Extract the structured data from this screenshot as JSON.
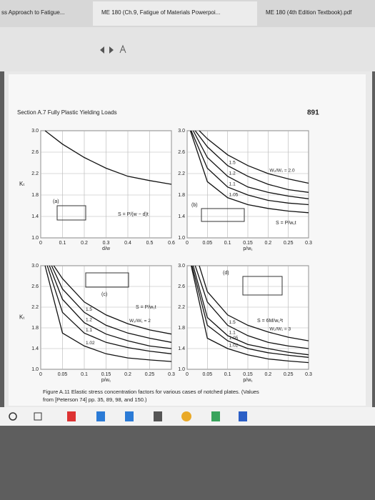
{
  "tabs": [
    "ss Approach to Fatigue...",
    "ME 180 (Ch.9, Fatigue of Materials Powerpoi...",
    "ME 180 (4th Edition Textbook).pdf"
  ],
  "header": {
    "section": "Section A.7  Fully Plastic Yielding Loads",
    "page_number": "891"
  },
  "caption": {
    "lines": [
      "Figure A.11  Elastic stress concentration factors for various cases of notched plates. (Values",
      "from [Peterson 74] pp. 35, 89, 98, and 150.)"
    ]
  },
  "chart_data": [
    {
      "type": "line",
      "ylabel": "Kₜ",
      "xlabel": "d/w",
      "panel": "(a)",
      "formula": "S = P/(w − d)t",
      "grid": true,
      "xlim": [
        0,
        0.6
      ],
      "xticks": [
        0,
        0.1,
        0.2,
        0.3,
        0.4,
        0.5,
        0.6
      ],
      "ylim": [
        1,
        3
      ],
      "yticks": [
        {
          "value": 1,
          "label": "1.0"
        },
        1.4,
        1.8,
        2.2,
        2.6,
        {
          "value": 3,
          "label": "3.0"
        }
      ],
      "series": [
        {
          "x": [
            0.02,
            0.1,
            0.2,
            0.3,
            0.4,
            0.5,
            0.6
          ],
          "values": [
            3.0,
            2.75,
            2.5,
            2.3,
            2.15,
            2.07,
            2.0
          ]
        }
      ]
    },
    {
      "type": "line",
      "xlabel": "p/w₁",
      "panel": "(b)",
      "formula": "S = P/w₁t",
      "grid": true,
      "xlim": [
        0,
        0.3
      ],
      "xticks": [
        0,
        0.05,
        0.1,
        0.15,
        0.2,
        0.25,
        0.3
      ],
      "ylim": [
        1,
        3
      ],
      "yticks": [
        {
          "value": 1,
          "label": "1.0"
        },
        1.4,
        1.8,
        2.2,
        2.6,
        {
          "value": 3,
          "label": "3.0"
        }
      ],
      "series": [
        {
          "name": "W₂/W₁ = 2.0",
          "x": [
            0.03,
            0.05,
            0.1,
            0.15,
            0.2,
            0.25,
            0.3
          ],
          "values": [
            3.0,
            2.85,
            2.55,
            2.35,
            2.2,
            2.1,
            2.02
          ]
        },
        {
          "name": "1.5",
          "x": [
            0.02,
            0.05,
            0.1,
            0.15,
            0.2,
            0.25,
            0.3
          ],
          "values": [
            3.0,
            2.7,
            2.35,
            2.15,
            2.0,
            1.9,
            1.85
          ]
        },
        {
          "name": "1.2",
          "x": [
            0.015,
            0.05,
            0.1,
            0.15,
            0.2,
            0.25,
            0.3
          ],
          "values": [
            3.0,
            2.5,
            2.15,
            1.95,
            1.85,
            1.78,
            1.73
          ]
        },
        {
          "name": "1.1",
          "x": [
            0.01,
            0.05,
            0.1,
            0.15,
            0.2,
            0.25,
            0.3
          ],
          "values": [
            3.0,
            2.3,
            1.95,
            1.8,
            1.7,
            1.65,
            1.62
          ]
        },
        {
          "name": "1.05",
          "x": [
            0.008,
            0.05,
            0.1,
            0.15,
            0.2,
            0.25,
            0.3
          ],
          "values": [
            3.0,
            2.05,
            1.75,
            1.62,
            1.55,
            1.5,
            1.47
          ]
        }
      ]
    },
    {
      "type": "line",
      "ylabel": "Kₜ",
      "xlabel": "p/w₁",
      "panel": "(c)",
      "formula": "S = P/w₁t",
      "grid": true,
      "xlim": [
        0,
        0.3
      ],
      "xticks": [
        0,
        0.05,
        0.1,
        0.15,
        0.2,
        0.25,
        0.3
      ],
      "ylim": [
        1,
        3
      ],
      "yticks": [
        {
          "value": 1,
          "label": "1.0"
        },
        1.4,
        1.8,
        2.2,
        2.6,
        {
          "value": 3,
          "label": "3.0"
        }
      ],
      "series": [
        {
          "name": "W₂/W₁ = 2",
          "x": [
            0.03,
            0.05,
            0.1,
            0.15,
            0.2,
            0.25,
            0.3
          ],
          "values": [
            3.0,
            2.75,
            2.3,
            2.05,
            1.88,
            1.76,
            1.68
          ]
        },
        {
          "name": "1.5",
          "x": [
            0.025,
            0.05,
            0.1,
            0.15,
            0.2,
            0.25,
            0.3
          ],
          "values": [
            3.0,
            2.55,
            2.1,
            1.85,
            1.7,
            1.6,
            1.52
          ]
        },
        {
          "name": "1.2",
          "x": [
            0.02,
            0.05,
            0.1,
            0.15,
            0.2,
            0.25,
            0.3
          ],
          "values": [
            3.0,
            2.35,
            1.9,
            1.68,
            1.55,
            1.45,
            1.4
          ]
        },
        {
          "name": "1.1",
          "x": [
            0.015,
            0.05,
            0.1,
            0.15,
            0.2,
            0.25,
            0.3
          ],
          "values": [
            3.0,
            2.1,
            1.7,
            1.52,
            1.42,
            1.35,
            1.3
          ]
        },
        {
          "name": "1.02",
          "x": [
            0.01,
            0.05,
            0.1,
            0.15,
            0.2,
            0.25,
            0.3
          ],
          "values": [
            3.0,
            1.7,
            1.45,
            1.3,
            1.22,
            1.18,
            1.15
          ]
        }
      ]
    },
    {
      "type": "line",
      "xlabel": "p/w₁",
      "panel": "(d)",
      "formula": "S = 6M/w₁²t",
      "grid": true,
      "xlim": [
        0,
        0.3
      ],
      "xticks": [
        0,
        0.05,
        0.1,
        0.15,
        0.2,
        0.25,
        0.3
      ],
      "ylim": [
        1,
        3
      ],
      "yticks": [
        {
          "value": 1,
          "label": "1.0"
        },
        1.4,
        1.8,
        2.2,
        2.6,
        {
          "value": 3,
          "label": "3.0"
        }
      ],
      "series": [
        {
          "name": "W₂/W₁ = 3",
          "x": [
            0.03,
            0.05,
            0.1,
            0.15,
            0.2,
            0.25,
            0.3
          ],
          "values": [
            3.0,
            2.5,
            2.05,
            1.85,
            1.72,
            1.62,
            1.55
          ]
        },
        {
          "name": "1.5",
          "x": [
            0.02,
            0.05,
            0.1,
            0.15,
            0.2,
            0.25,
            0.3
          ],
          "values": [
            3.0,
            2.3,
            1.85,
            1.65,
            1.52,
            1.45,
            1.4
          ]
        },
        {
          "name": "1.1",
          "x": [
            0.015,
            0.05,
            0.1,
            0.15,
            0.2,
            0.25,
            0.3
          ],
          "values": [
            3.0,
            2.0,
            1.65,
            1.48,
            1.4,
            1.33,
            1.28
          ]
        },
        {
          "name": "1.05",
          "x": [
            0.012,
            0.05,
            0.1,
            0.15,
            0.2,
            0.25,
            0.3
          ],
          "values": [
            3.0,
            1.85,
            1.55,
            1.4,
            1.32,
            1.27,
            1.23
          ]
        },
        {
          "name": "1.02",
          "x": [
            0.01,
            0.05,
            0.1,
            0.15,
            0.2,
            0.25,
            0.3
          ],
          "values": [
            3.0,
            1.6,
            1.4,
            1.28,
            1.2,
            1.16,
            1.13
          ]
        }
      ]
    }
  ]
}
